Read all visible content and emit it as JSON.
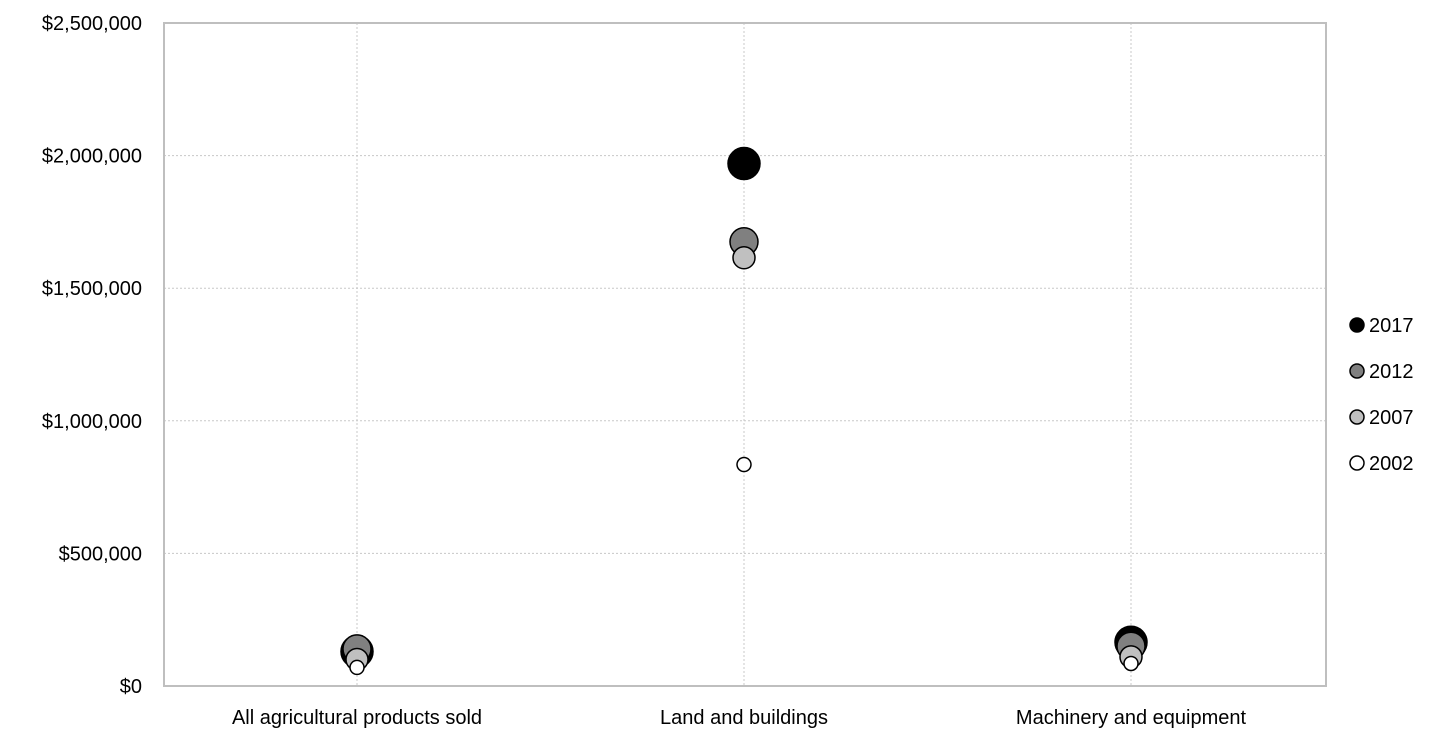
{
  "chart_data": {
    "type": "scatter",
    "title": "",
    "xlabel": "",
    "ylabel": "",
    "categories": [
      "All agricultural products sold",
      "Land and buildings",
      "Machinery and equipment"
    ],
    "ylim": [
      0,
      2500000
    ],
    "yticks": [
      0,
      500000,
      1000000,
      1500000,
      2000000,
      2500000
    ],
    "ytick_labels": [
      "$0",
      "$500,000",
      "$1,000,000",
      "$1,500,000",
      "$2,000,000",
      "$2,500,000"
    ],
    "grid": true,
    "legend_position": "right",
    "series": [
      {
        "name": "2017",
        "color": "#000000",
        "size": 5,
        "values": [
          130000,
          1970000,
          165000
        ]
      },
      {
        "name": "2012",
        "color": "#808080",
        "size": 4,
        "values": [
          140000,
          1675000,
          150000
        ]
      },
      {
        "name": "2007",
        "color": "#c0c0c0",
        "size": 3,
        "values": [
          100000,
          1615000,
          110000
        ]
      },
      {
        "name": "2002",
        "color": "#ffffff",
        "size": 2,
        "values": [
          70000,
          835000,
          85000
        ]
      }
    ]
  }
}
